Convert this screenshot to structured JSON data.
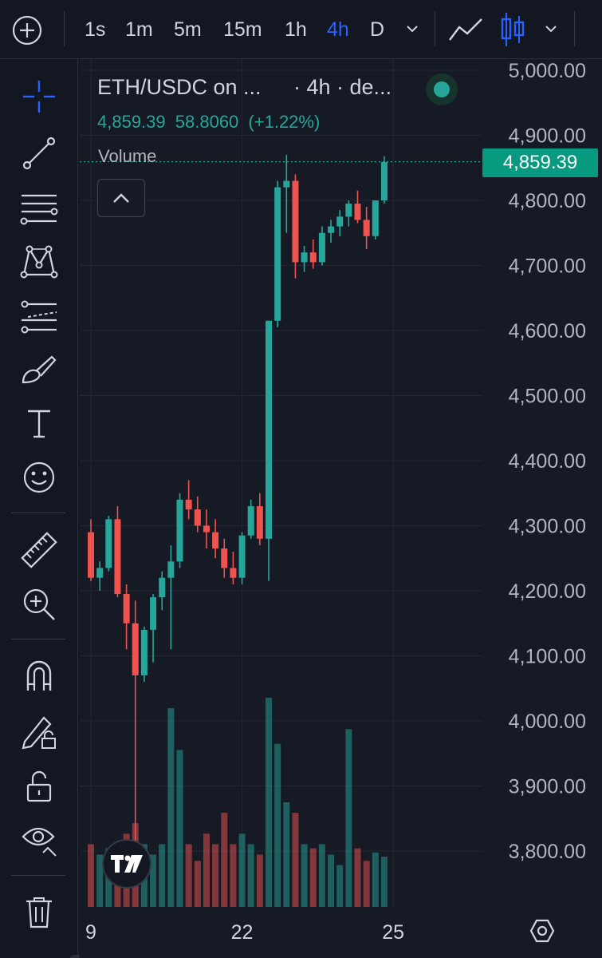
{
  "toolbar": {
    "timeframes": [
      "1s",
      "1m",
      "5m",
      "15m",
      "1h",
      "4h",
      "D"
    ],
    "active_timeframe": "4h",
    "chart_style": "candles"
  },
  "legend": {
    "symbol": "ETH/USDC on ...",
    "interval_suffix": "· 4h · de...",
    "last": "4,859.39",
    "change": "58.8060",
    "change_pct": "(+1.22%)",
    "volume_label": "Volume"
  },
  "price_tag": "4,859.39",
  "colors": {
    "up": "#26a69a",
    "down": "#ef5350",
    "active": "#2962ff",
    "background": "#161a25"
  },
  "tools": [
    "crosshair-icon",
    "trend-line-icon",
    "fib-retracement-icon",
    "pattern-icon",
    "prediction-icon",
    "brush-icon",
    "text-icon",
    "emoji-icon",
    "ruler-icon",
    "zoom-in-icon",
    "magnet-icon",
    "lock-drawings-icon",
    "lock-icon",
    "eye-icon",
    "trash-icon"
  ],
  "chart_data": {
    "type": "candlestick",
    "y_axis": {
      "ticks": [
        "5,000.00",
        "4,900.00",
        "4,800.00",
        "4,700.00",
        "4,600.00",
        "4,500.00",
        "4,400.00",
        "4,300.00",
        "4,200.00",
        "4,100.00",
        "4,000.00",
        "3,900.00",
        "3,800.00"
      ],
      "tick_values": [
        5000,
        4900,
        4800,
        4700,
        4600,
        4500,
        4400,
        4300,
        4200,
        4100,
        4000,
        3900,
        3800
      ]
    },
    "x_axis": {
      "labels": [
        "9",
        "22",
        "25"
      ],
      "label_candle_index": [
        0,
        17,
        34
      ]
    },
    "last_price": 4859.39,
    "candles": [
      [
        4290,
        4310,
        4215,
        4220
      ],
      [
        4220,
        4245,
        4200,
        4235
      ],
      [
        4235,
        4315,
        4230,
        4310
      ],
      [
        4310,
        4330,
        4190,
        4195
      ],
      [
        4195,
        4210,
        4110,
        4150
      ],
      [
        4150,
        4185,
        3810,
        4070
      ],
      [
        4070,
        4145,
        4060,
        4140
      ],
      [
        4140,
        4195,
        4090,
        4190
      ],
      [
        4190,
        4230,
        4170,
        4220
      ],
      [
        4220,
        4270,
        4110,
        4245
      ],
      [
        4245,
        4350,
        4235,
        4340
      ],
      [
        4340,
        4370,
        4310,
        4325
      ],
      [
        4325,
        4345,
        4290,
        4300
      ],
      [
        4300,
        4325,
        4265,
        4290
      ],
      [
        4290,
        4310,
        4250,
        4265
      ],
      [
        4265,
        4280,
        4220,
        4235
      ],
      [
        4235,
        4260,
        4210,
        4220
      ],
      [
        4220,
        4290,
        4210,
        4285
      ],
      [
        4285,
        4340,
        4280,
        4330
      ],
      [
        4330,
        4350,
        4270,
        4280
      ],
      [
        4280,
        4615,
        4215,
        4615
      ],
      [
        4615,
        4830,
        4605,
        4820
      ],
      [
        4820,
        4870,
        4750,
        4830
      ],
      [
        4830,
        4840,
        4680,
        4705
      ],
      [
        4705,
        4730,
        4690,
        4720
      ],
      [
        4720,
        4740,
        4695,
        4705
      ],
      [
        4705,
        4760,
        4700,
        4750
      ],
      [
        4750,
        4770,
        4735,
        4760
      ],
      [
        4760,
        4785,
        4745,
        4775
      ],
      [
        4775,
        4800,
        4760,
        4795
      ],
      [
        4795,
        4815,
        4765,
        4770
      ],
      [
        4770,
        4790,
        4725,
        4745
      ],
      [
        4745,
        4800,
        4740,
        4800
      ],
      [
        4800,
        4868,
        4795,
        4859
      ]
    ],
    "volume_relative": [
      0.3,
      0.25,
      0.28,
      0.22,
      0.35,
      0.4,
      0.3,
      0.25,
      0.3,
      0.95,
      0.75,
      0.3,
      0.22,
      0.35,
      0.3,
      0.45,
      0.3,
      0.35,
      0.3,
      0.25,
      1.0,
      0.78,
      0.5,
      0.45,
      0.3,
      0.28,
      0.3,
      0.25,
      0.2,
      0.85,
      0.28,
      0.22,
      0.26,
      0.24
    ]
  }
}
